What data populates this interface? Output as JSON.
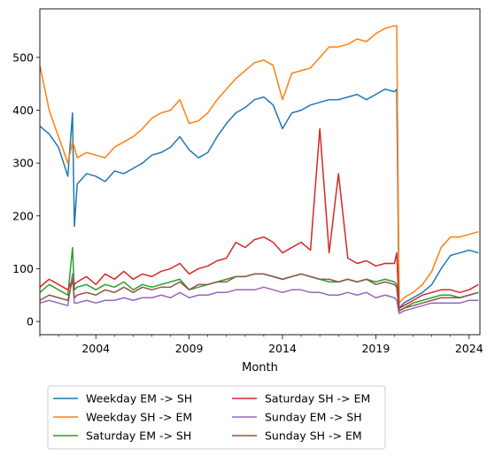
{
  "chart_data": {
    "type": "line",
    "xlabel": "Month",
    "ylabel": "",
    "xlim": [
      2001.0,
      2024.58
    ],
    "ylim": [
      -25,
      592
    ],
    "x_ticks": [
      2004,
      2009,
      2014,
      2019,
      2024
    ],
    "y_ticks": [
      0,
      100,
      200,
      300,
      400,
      500
    ],
    "grid": false,
    "legend_position": "below the plot, two columns",
    "colors": [
      "#1f77b4",
      "#ff7f0e",
      "#2ca02c",
      "#d62728",
      "#9467bd",
      "#8c564b"
    ],
    "x": [
      2001.0,
      2001.5,
      2002.0,
      2002.5,
      2002.75,
      2002.85,
      2003.0,
      2003.5,
      2004.0,
      2004.5,
      2005.0,
      2005.5,
      2006.0,
      2006.5,
      2007.0,
      2007.5,
      2008.0,
      2008.5,
      2009.0,
      2009.5,
      2010.0,
      2010.5,
      2011.0,
      2011.5,
      2012.0,
      2012.5,
      2013.0,
      2013.5,
      2014.0,
      2014.5,
      2015.0,
      2015.5,
      2016.0,
      2016.5,
      2017.0,
      2017.5,
      2018.0,
      2018.5,
      2019.0,
      2019.5,
      2020.0,
      2020.12,
      2020.25,
      2020.5,
      2021.0,
      2021.5,
      2022.0,
      2022.5,
      2023.0,
      2023.5,
      2024.0,
      2024.5
    ],
    "series": [
      {
        "name": "Weekday EM -> SH",
        "values": [
          370,
          355,
          330,
          275,
          395,
          180,
          260,
          280,
          275,
          265,
          285,
          280,
          290,
          300,
          315,
          320,
          330,
          350,
          325,
          310,
          320,
          350,
          375,
          395,
          405,
          420,
          425,
          410,
          365,
          395,
          400,
          410,
          415,
          420,
          420,
          425,
          430,
          420,
          430,
          440,
          435,
          440,
          25,
          35,
          45,
          55,
          70,
          100,
          125,
          130,
          135,
          130
        ]
      },
      {
        "name": "Weekday SH -> EM",
        "values": [
          485,
          400,
          350,
          300,
          340,
          330,
          310,
          320,
          315,
          310,
          330,
          340,
          350,
          365,
          385,
          395,
          400,
          420,
          375,
          380,
          395,
          420,
          440,
          460,
          475,
          490,
          495,
          485,
          420,
          470,
          475,
          480,
          500,
          520,
          520,
          525,
          535,
          530,
          545,
          555,
          560,
          560,
          35,
          45,
          55,
          70,
          95,
          140,
          160,
          160,
          165,
          170
        ]
      },
      {
        "name": "Saturday EM -> SH",
        "values": [
          55,
          70,
          60,
          50,
          140,
          60,
          65,
          70,
          60,
          70,
          65,
          75,
          60,
          70,
          65,
          70,
          75,
          80,
          60,
          65,
          70,
          75,
          80,
          85,
          85,
          90,
          90,
          85,
          80,
          85,
          90,
          85,
          80,
          75,
          75,
          80,
          75,
          80,
          75,
          80,
          75,
          70,
          20,
          25,
          35,
          40,
          45,
          50,
          50,
          45,
          50,
          55
        ]
      },
      {
        "name": "Saturday SH -> EM",
        "values": [
          65,
          80,
          70,
          60,
          80,
          70,
          75,
          85,
          70,
          90,
          80,
          95,
          80,
          90,
          85,
          95,
          100,
          110,
          90,
          100,
          105,
          115,
          120,
          150,
          140,
          155,
          160,
          150,
          130,
          140,
          150,
          135,
          365,
          130,
          280,
          120,
          110,
          115,
          105,
          110,
          110,
          130,
          25,
          30,
          40,
          50,
          55,
          60,
          60,
          55,
          60,
          70
        ]
      },
      {
        "name": "Sunday EM -> SH",
        "values": [
          35,
          40,
          35,
          30,
          90,
          35,
          35,
          40,
          35,
          40,
          40,
          45,
          40,
          45,
          45,
          50,
          45,
          55,
          45,
          50,
          50,
          55,
          55,
          60,
          60,
          60,
          65,
          60,
          55,
          60,
          60,
          55,
          55,
          50,
          50,
          55,
          50,
          55,
          45,
          50,
          45,
          40,
          15,
          20,
          25,
          30,
          35,
          35,
          35,
          35,
          40,
          40
        ]
      },
      {
        "name": "Sunday SH -> EM",
        "values": [
          40,
          50,
          45,
          40,
          80,
          45,
          50,
          55,
          50,
          60,
          55,
          65,
          55,
          65,
          60,
          65,
          65,
          75,
          60,
          70,
          70,
          75,
          75,
          85,
          85,
          90,
          90,
          85,
          80,
          85,
          90,
          85,
          80,
          80,
          75,
          80,
          75,
          80,
          70,
          75,
          70,
          65,
          20,
          25,
          30,
          35,
          40,
          45,
          45,
          45,
          50,
          55
        ]
      }
    ]
  }
}
